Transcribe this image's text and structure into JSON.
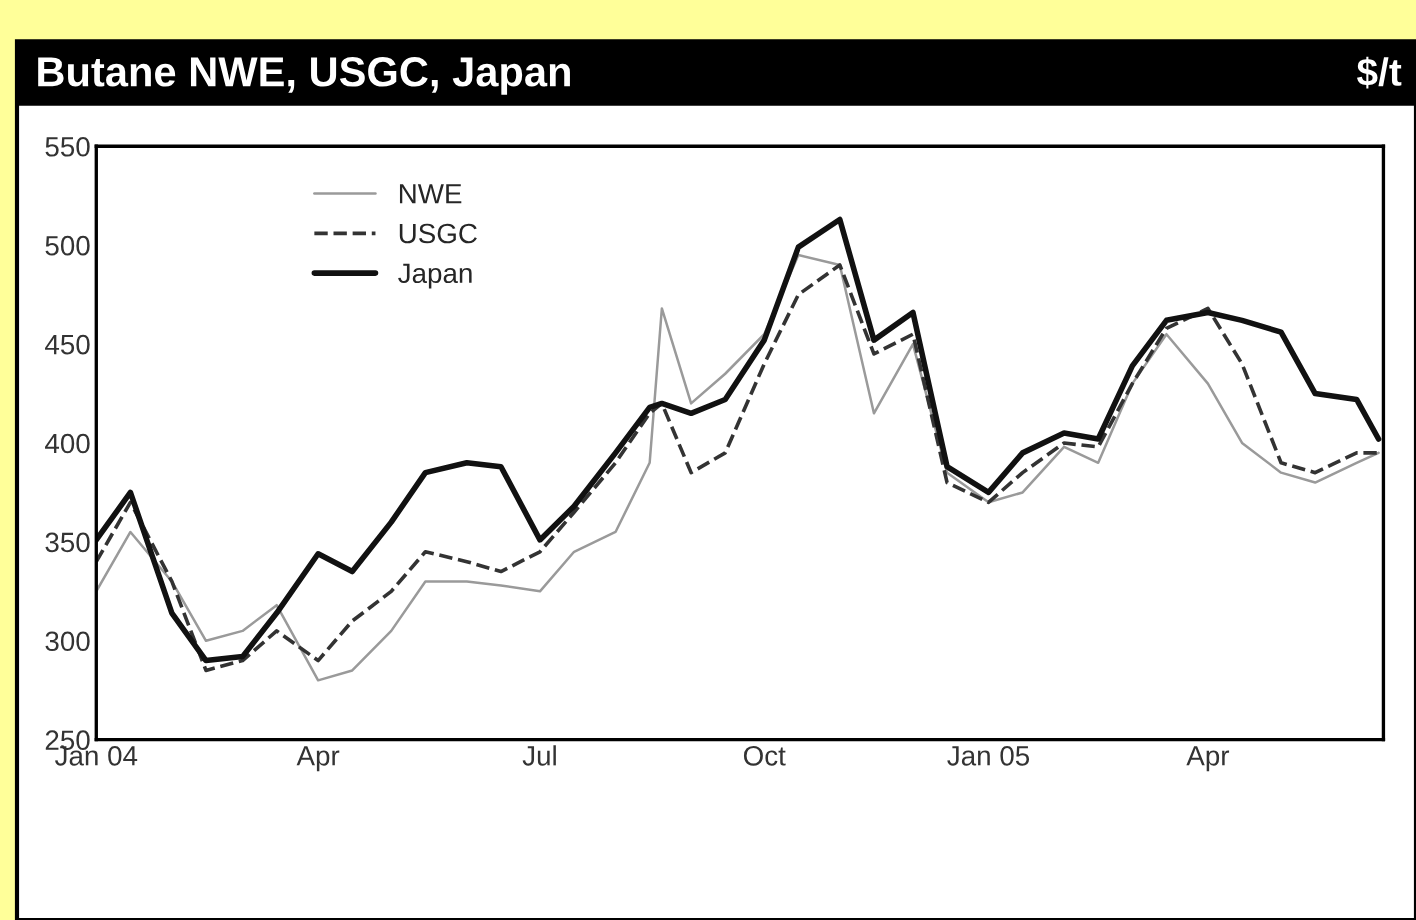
{
  "chart_data": {
    "type": "line",
    "title": "Butane NWE, USGC, Japan",
    "ylabel": "$/t",
    "x": [
      "2004-01-01",
      "2004-01-15",
      "2004-02-01",
      "2004-02-15",
      "2004-03-01",
      "2004-03-15",
      "2004-04-01",
      "2004-04-15",
      "2004-05-01",
      "2004-05-15",
      "2004-06-01",
      "2004-06-15",
      "2004-07-01",
      "2004-07-15",
      "2004-08-01",
      "2004-08-15",
      "2004-08-20",
      "2004-09-01",
      "2004-09-15",
      "2004-10-01",
      "2004-10-15",
      "2004-11-01",
      "2004-11-15",
      "2004-12-01",
      "2004-12-15",
      "2005-01-01",
      "2005-01-15",
      "2005-02-01",
      "2005-02-15",
      "2005-03-01",
      "2005-03-15",
      "2005-04-01",
      "2005-04-15",
      "2005-05-01",
      "2005-05-15",
      "2005-06-01",
      "2005-06-10"
    ],
    "series": [
      {
        "name": "NWE",
        "color": "#9a9a9a",
        "line_style": "solid",
        "values": [
          325,
          355,
          330,
          300,
          305,
          318,
          280,
          285,
          305,
          330,
          330,
          328,
          325,
          345,
          355,
          390,
          468,
          420,
          435,
          455,
          495,
          490,
          415,
          450,
          385,
          370,
          375,
          398,
          390,
          430,
          455,
          430,
          400,
          385,
          380,
          390,
          395
        ]
      },
      {
        "name": "USGC",
        "color": "#333333",
        "line_style": "dashed",
        "values": [
          340,
          370,
          330,
          285,
          290,
          305,
          290,
          310,
          325,
          345,
          340,
          335,
          345,
          365,
          390,
          415,
          420,
          385,
          395,
          440,
          475,
          490,
          445,
          455,
          380,
          370,
          385,
          400,
          398,
          430,
          458,
          468,
          440,
          390,
          385,
          395,
          395
        ]
      },
      {
        "name": "Japan",
        "color": "#111111",
        "line_style": "solid",
        "values": [
          351,
          375,
          314,
          290,
          292,
          314,
          344,
          335,
          360,
          385,
          390,
          388,
          351,
          368,
          395,
          418,
          420,
          415,
          422,
          452,
          499,
          513,
          452,
          466,
          388,
          375,
          395,
          405,
          402,
          439,
          462,
          466,
          462,
          456,
          425,
          422,
          402
        ]
      }
    ],
    "xlim": [
      "2004-01-01",
      "2005-06-12"
    ],
    "xticks": [
      {
        "value": "2004-01-01",
        "label": "Jan 04"
      },
      {
        "value": "2004-04-01",
        "label": "Apr"
      },
      {
        "value": "2004-07-01",
        "label": "Jul"
      },
      {
        "value": "2004-10-01",
        "label": "Oct"
      },
      {
        "value": "2005-01-01",
        "label": "Jan 05"
      },
      {
        "value": "2005-04-01",
        "label": "Apr"
      }
    ],
    "ylim": [
      250,
      550
    ],
    "yticks": [
      250,
      300,
      350,
      400,
      450,
      500,
      550
    ],
    "grid": false,
    "legend": "top left",
    "marker": "none"
  }
}
